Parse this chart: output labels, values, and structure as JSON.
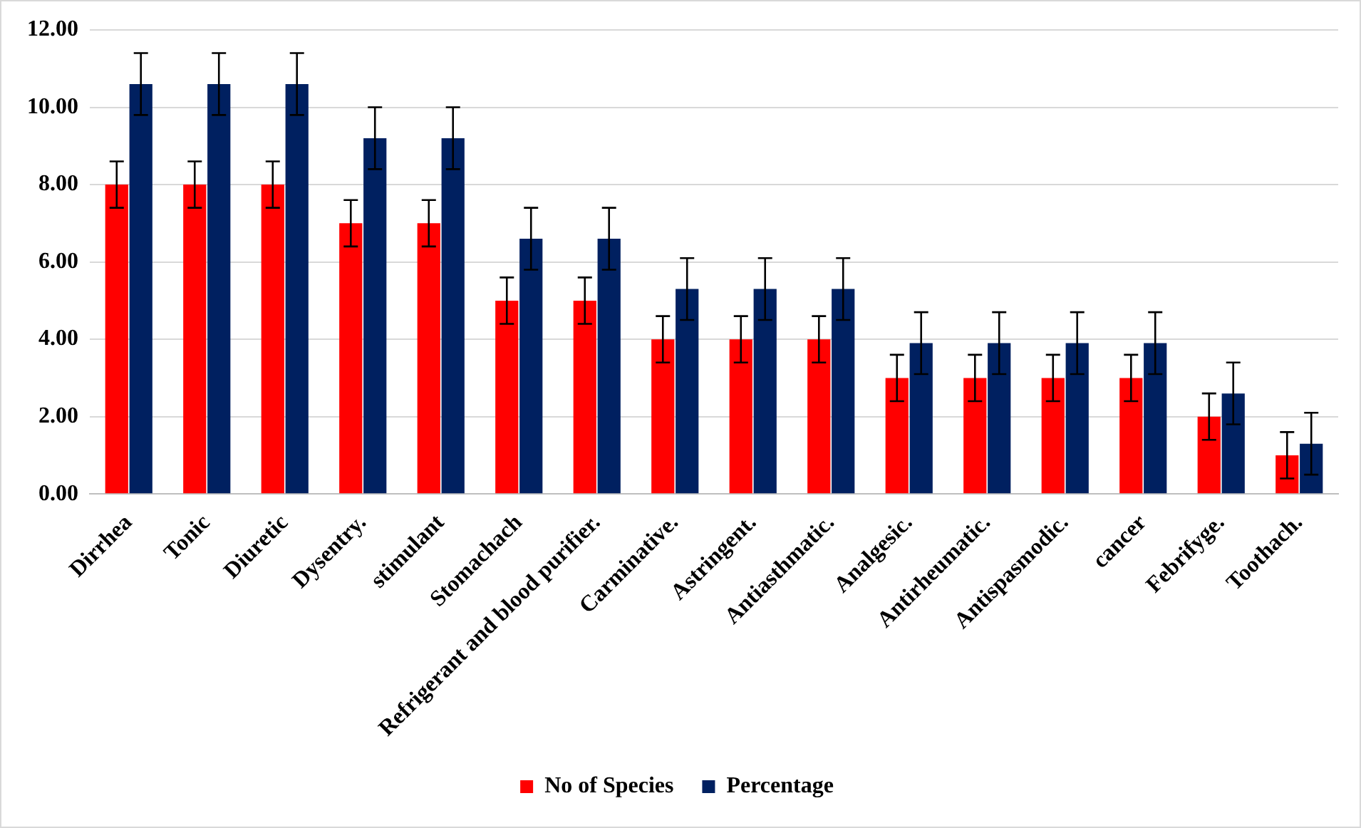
{
  "chart_data": {
    "type": "bar",
    "categories": [
      "Dirrhea",
      "Tonic",
      "Diuretic",
      "Dysentry.",
      "stimulant",
      "Stomachach",
      "Refrigerant and blood purifier.",
      "Carminative.",
      "Astringent.",
      "Antiasthmatic.",
      "Analgesic.",
      "Antirheumatic.",
      "Antispasmodic.",
      "cancer",
      "Febrifyge.",
      "Toothach."
    ],
    "series": [
      {
        "name": "No of Species",
        "color": "#ff0000",
        "values": [
          8,
          8,
          8,
          7,
          7,
          5,
          5,
          4,
          4,
          4,
          3,
          3,
          3,
          3,
          2,
          1
        ],
        "errors": [
          0.6,
          0.6,
          0.6,
          0.6,
          0.6,
          0.6,
          0.6,
          0.6,
          0.6,
          0.6,
          0.6,
          0.6,
          0.6,
          0.6,
          0.6,
          0.6
        ]
      },
      {
        "name": "Percentage",
        "color": "#002060",
        "values": [
          10.6,
          10.6,
          10.6,
          9.2,
          9.2,
          6.6,
          6.6,
          5.3,
          5.3,
          5.3,
          3.9,
          3.9,
          3.9,
          3.9,
          2.6,
          1.3
        ],
        "errors": [
          0.8,
          0.8,
          0.8,
          0.8,
          0.8,
          0.8,
          0.8,
          0.8,
          0.8,
          0.8,
          0.8,
          0.8,
          0.8,
          0.8,
          0.8,
          0.8
        ]
      }
    ],
    "ylim": [
      0,
      12
    ],
    "yticks": [
      {
        "value": 0,
        "label": "0.00"
      },
      {
        "value": 2,
        "label": "2.00"
      },
      {
        "value": 4,
        "label": "4.00"
      },
      {
        "value": 6,
        "label": "6.00"
      },
      {
        "value": 8,
        "label": "8.00"
      },
      {
        "value": 10,
        "label": "10.00"
      },
      {
        "value": 12,
        "label": "12.00"
      }
    ],
    "grid": "y",
    "legend": "bottom"
  }
}
